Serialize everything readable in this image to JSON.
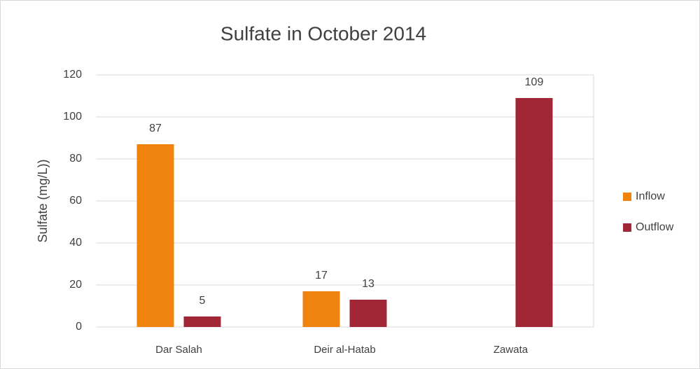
{
  "chart_data": {
    "type": "bar",
    "title": "Sulfate in October 2014",
    "y_label": "Sulfate (mg/L))",
    "categories": [
      "Dar Salah",
      "Deir al-Hatab",
      "Zawata"
    ],
    "series": [
      {
        "name": "Inflow",
        "color": "#f0830e",
        "values": [
          87,
          17,
          null
        ]
      },
      {
        "name": "Outflow",
        "color": "#a12736",
        "values": [
          5,
          13,
          109
        ]
      }
    ],
    "ylim": [
      0,
      120
    ],
    "yticks": [
      0,
      20,
      40,
      60,
      80,
      100,
      120
    ],
    "grid": true,
    "legend": "right"
  }
}
